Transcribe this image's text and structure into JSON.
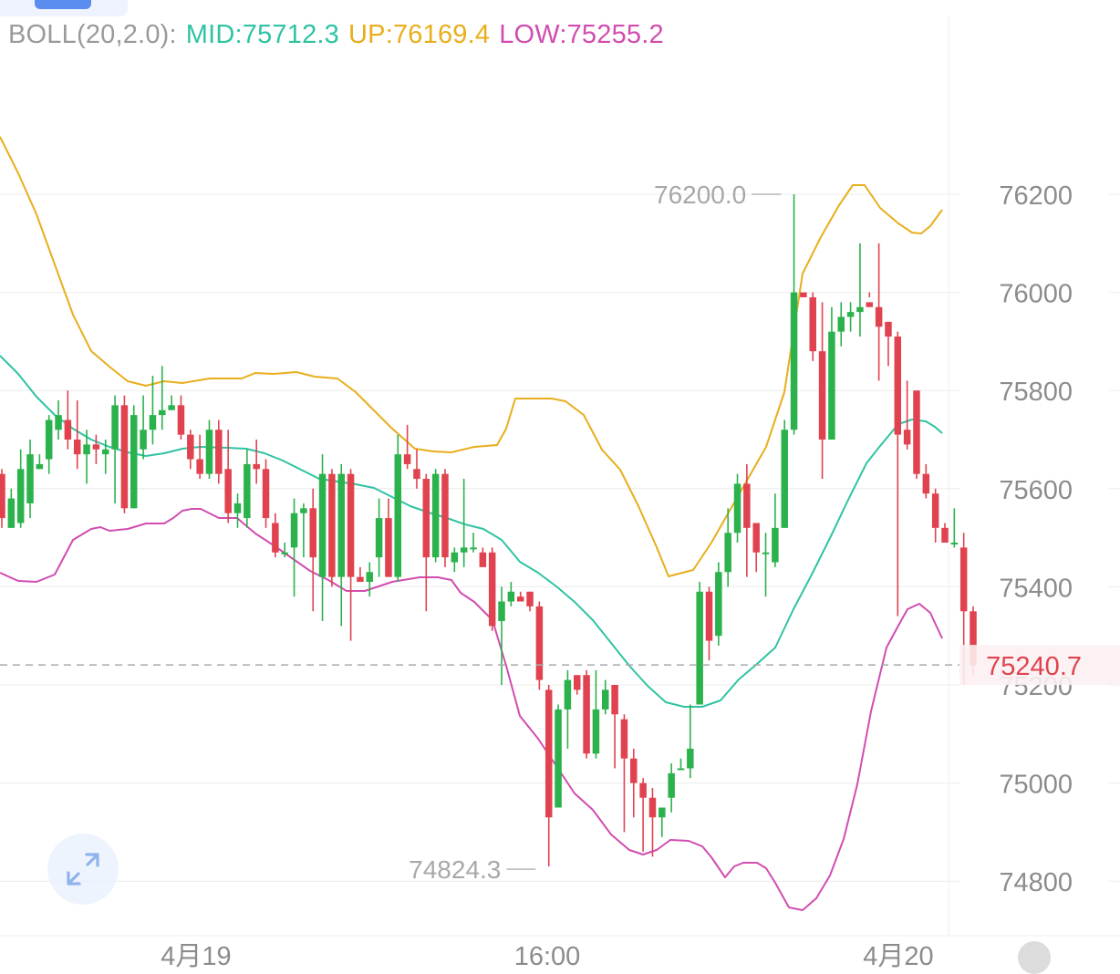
{
  "legend": {
    "indicator": "BOLL(20,2.0):",
    "mid": "MID:75712.3",
    "up": "UP:76169.4",
    "low": "LOW:75255.2"
  },
  "colors": {
    "up_candle": "#2bb24c",
    "down_candle": "#e0434f",
    "mid_line": "#2fc3a3",
    "upper_line": "#e8ae1c",
    "lower_line": "#d14db0",
    "price_tag": "#e0434f",
    "grid": "#ececec"
  },
  "chart_data": {
    "type": "candlestick",
    "title": "",
    "indicator": "BOLL(20,2.0)",
    "y_ticks": [
      "74800",
      "75000",
      "75200",
      "75400",
      "75600",
      "75800",
      "76000",
      "76200"
    ],
    "ylim": [
      74710,
      76600
    ],
    "x_ticks": [
      "4月19",
      "16:00",
      "4月20"
    ],
    "grid": true,
    "current_price": "75240.7",
    "max_annotation": "76200.0",
    "min_annotation": "74824.3",
    "boll_last": {
      "mid": 75712.3,
      "up": 76169.4,
      "low": 75255.2
    },
    "candles": [
      [
        75630,
        75540,
        75640,
        75520
      ],
      [
        75520,
        75580,
        75600,
        75520
      ],
      [
        75530,
        75640,
        75680,
        75520
      ],
      [
        75570,
        75670,
        75700,
        75540
      ],
      [
        75640,
        75650,
        75670,
        75640
      ],
      [
        75660,
        75740,
        75750,
        75630
      ],
      [
        75720,
        75750,
        75780,
        75700
      ],
      [
        75740,
        75700,
        75800,
        75680
      ],
      [
        75700,
        75670,
        75780,
        75640
      ],
      [
        75670,
        75690,
        75720,
        75610
      ],
      [
        75690,
        75680,
        75710,
        75650
      ],
      [
        75670,
        75680,
        75700,
        75630
      ],
      [
        75680,
        75770,
        75790,
        75570
      ],
      [
        75770,
        75560,
        75790,
        75550
      ],
      [
        75560,
        75750,
        75770,
        75560
      ],
      [
        75680,
        75720,
        75790,
        75660
      ],
      [
        75720,
        75750,
        75830,
        75690
      ],
      [
        75750,
        75760,
        75850,
        75720
      ],
      [
        75760,
        75770,
        75790,
        75760
      ],
      [
        75770,
        75710,
        75790,
        75700
      ],
      [
        75710,
        75660,
        75720,
        75640
      ],
      [
        75660,
        75630,
        75710,
        75620
      ],
      [
        75630,
        75720,
        75740,
        75620
      ],
      [
        75720,
        75630,
        75740,
        75610
      ],
      [
        75640,
        75550,
        75720,
        75530
      ],
      [
        75550,
        75570,
        75590,
        75520
      ],
      [
        75540,
        75650,
        75680,
        75520
      ],
      [
        75650,
        75640,
        75700,
        75610
      ],
      [
        75640,
        75540,
        75660,
        75520
      ],
      [
        75530,
        75470,
        75550,
        75460
      ],
      [
        75470,
        75470,
        75490,
        75460
      ],
      [
        75480,
        75550,
        75580,
        75380
      ],
      [
        75550,
        75560,
        75570,
        75460
      ],
      [
        75560,
        75460,
        75600,
        75350
      ],
      [
        75420,
        75630,
        75670,
        75330
      ],
      [
        75630,
        75420,
        75640,
        75400
      ],
      [
        75420,
        75630,
        75650,
        75320
      ],
      [
        75630,
        75420,
        75640,
        75290
      ],
      [
        75420,
        75410,
        75440,
        75410
      ],
      [
        75410,
        75430,
        75450,
        75380
      ],
      [
        75460,
        75540,
        75580,
        75420
      ],
      [
        75540,
        75420,
        75580,
        75420
      ],
      [
        75420,
        75670,
        75710,
        75410
      ],
      [
        75670,
        75650,
        75730,
        75640
      ],
      [
        75640,
        75620,
        75680,
        75600
      ],
      [
        75620,
        75460,
        75630,
        75350
      ],
      [
        75460,
        75630,
        75640,
        75450
      ],
      [
        75630,
        75460,
        75640,
        75440
      ],
      [
        75450,
        75470,
        75480,
        75430
      ],
      [
        75470,
        75480,
        75620,
        75440
      ],
      [
        75480,
        75480,
        75510,
        75470
      ],
      [
        75470,
        75440,
        75480,
        75450
      ],
      [
        75470,
        75320,
        75480,
        75310
      ],
      [
        75330,
        75370,
        75400,
        75200
      ],
      [
        75370,
        75390,
        75410,
        75360
      ],
      [
        75380,
        75370,
        75390,
        75370
      ],
      [
        75390,
        75360,
        75390,
        75350
      ],
      [
        75360,
        75210,
        75370,
        75190
      ],
      [
        75190,
        74930,
        75200,
        74830
      ],
      [
        74950,
        75150,
        75160,
        74950
      ],
      [
        75150,
        75210,
        75230,
        75070
      ],
      [
        75220,
        75190,
        75220,
        75180
      ],
      [
        75220,
        75060,
        75230,
        75050
      ],
      [
        75060,
        75150,
        75230,
        75050
      ],
      [
        75150,
        75190,
        75210,
        75140
      ],
      [
        75200,
        75140,
        75200,
        75030
      ],
      [
        75130,
        75050,
        75140,
        74900
      ],
      [
        75050,
        75000,
        75070,
        74930
      ],
      [
        75000,
        74970,
        75010,
        74860
      ],
      [
        74970,
        74930,
        74990,
        74850
      ],
      [
        74930,
        74950,
        74950,
        74890
      ],
      [
        74970,
        75020,
        75040,
        74940
      ],
      [
        75030,
        75030,
        75050,
        75030
      ],
      [
        75030,
        75070,
        75160,
        75010
      ],
      [
        75160,
        75390,
        75410,
        75200
      ],
      [
        75390,
        75290,
        75400,
        75250
      ],
      [
        75300,
        75430,
        75450,
        75280
      ],
      [
        75430,
        75510,
        75560,
        75400
      ],
      [
        75510,
        75610,
        75630,
        75490
      ],
      [
        75610,
        75520,
        75650,
        75420
      ],
      [
        75530,
        75470,
        75480,
        75430
      ],
      [
        75470,
        75470,
        75510,
        75380
      ],
      [
        75450,
        75520,
        75590,
        75440
      ],
      [
        75520,
        75720,
        75740,
        75520
      ],
      [
        75720,
        76000,
        76200,
        75710
      ],
      [
        76000,
        75990,
        75990,
        75990
      ],
      [
        75990,
        75880,
        76000,
        75860
      ],
      [
        75880,
        75700,
        75980,
        75620
      ],
      [
        75700,
        75920,
        75970,
        75710
      ],
      [
        75920,
        75950,
        75980,
        75890
      ],
      [
        75950,
        75960,
        75980,
        75920
      ],
      [
        75960,
        75970,
        76100,
        75910
      ],
      [
        75980,
        75970,
        76000,
        75990
      ],
      [
        75970,
        75930,
        76100,
        75820
      ],
      [
        75940,
        75910,
        75940,
        75850
      ],
      [
        75910,
        75710,
        75920,
        75340
      ],
      [
        75720,
        75690,
        75820,
        75680
      ],
      [
        75800,
        75630,
        75800,
        75620
      ],
      [
        75630,
        75590,
        75650,
        75580
      ],
      [
        75590,
        75520,
        75600,
        75490
      ],
      [
        75520,
        75490,
        75530,
        75500
      ],
      [
        75490,
        75490,
        75560,
        75480
      ],
      [
        75480,
        75350,
        75510,
        75200
      ],
      [
        75350,
        75240,
        75360,
        75220
      ]
    ]
  }
}
